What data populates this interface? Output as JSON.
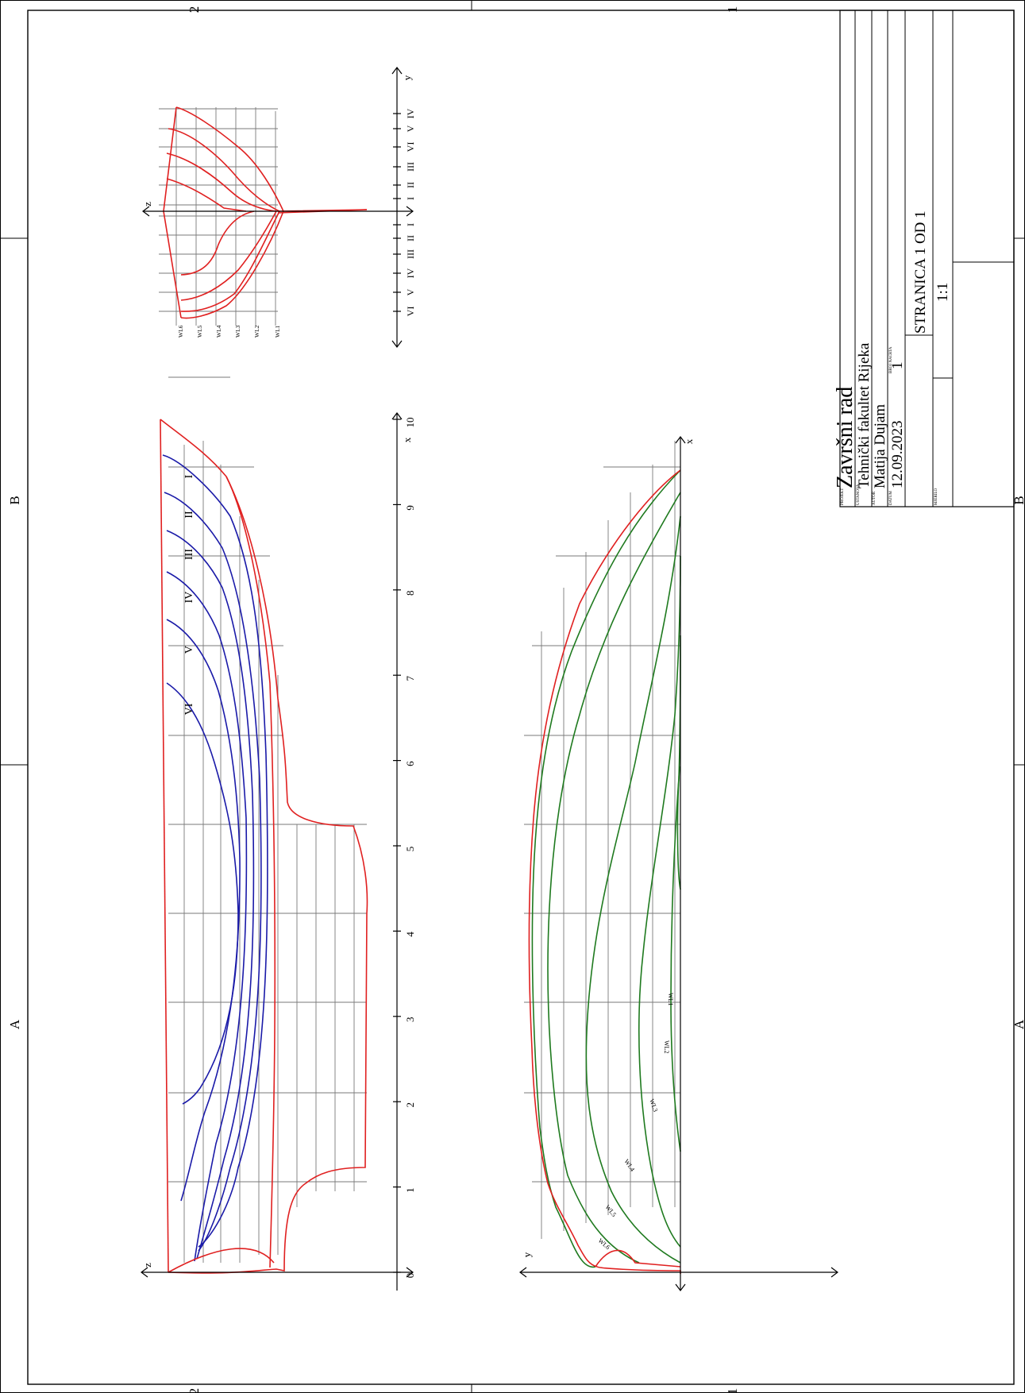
{
  "border_labels": {
    "left_letters": [
      "A",
      "B"
    ],
    "right_letters": [
      "A",
      "B"
    ],
    "top_numbers": [
      "2",
      "1"
    ],
    "bottom_numbers": [
      "2",
      "1"
    ]
  },
  "title_block": {
    "field_labels": {
      "project": "PROJEKT",
      "institution": "USTANOVA",
      "author": "AUTOR",
      "date": "DATUM",
      "drawing_no": "BROJ NACRTA",
      "scale": "MJERILO"
    },
    "project": "Završni rad",
    "institution": "Tehnički fakultet Rijeka",
    "author": "Matija Dujam",
    "date": "12.09.2023",
    "drawing_no": "1",
    "scale": "1:1",
    "page": "STRANICA 1 OD 1"
  },
  "sheer_plan": {
    "axis_h": "x",
    "axis_v": "z",
    "x_ticks": [
      "0",
      "1",
      "2",
      "3",
      "4",
      "5",
      "6",
      "7",
      "8",
      "9",
      "10"
    ],
    "buttock_labels": [
      "I",
      "II",
      "III",
      "IV",
      "V",
      "VI"
    ]
  },
  "half_breadth_plan": {
    "axis_h": "x",
    "axis_v": "y",
    "waterline_labels": [
      "WL1",
      "WL2",
      "WL3",
      "WL4",
      "WL5",
      "WL6"
    ]
  },
  "body_plan": {
    "axis_h": "y",
    "axis_v": "z",
    "ticks_left": [
      "VI",
      "V",
      "IV",
      "III",
      "II",
      "I"
    ],
    "ticks_right": [
      "I",
      "II",
      "III",
      "VI",
      "V",
      "IV"
    ],
    "waterline_labels": [
      "WL6",
      "WL5",
      "WL4",
      "WL3",
      "WL2",
      "WL1"
    ]
  },
  "colors": {
    "hull": "#e02020",
    "buttocks": "#1a1aa8",
    "waterlines": "#1f7a1f",
    "grid": "#7a7a7a",
    "ink": "#000000"
  }
}
